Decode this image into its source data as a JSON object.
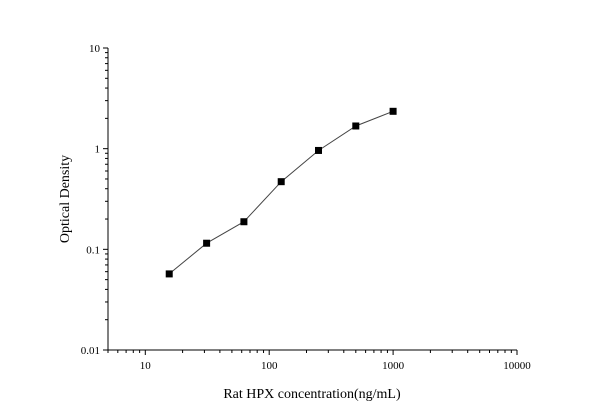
{
  "chart_data": {
    "type": "scatter",
    "xlabel": "Rat HPX concentration(ng/mL)",
    "ylabel": "Optical Density",
    "x_scale": "log",
    "y_scale": "log",
    "xlim": [
      5,
      10000
    ],
    "ylim": [
      0.01,
      10
    ],
    "x_ticks": [
      {
        "value": 10,
        "label": "10"
      },
      {
        "value": 100,
        "label": "100"
      },
      {
        "value": 1000,
        "label": "1000"
      },
      {
        "value": 10000,
        "label": "10000"
      }
    ],
    "y_ticks": [
      {
        "value": 0.01,
        "label": "0.01"
      },
      {
        "value": 0.1,
        "label": "0.1"
      },
      {
        "value": 1,
        "label": "1"
      },
      {
        "value": 10,
        "label": "10"
      }
    ],
    "grid": false,
    "legend": "none",
    "marker_color": "#000000",
    "line_color": "#444444",
    "series": [
      {
        "x": [
          15.6,
          31.25,
          62.5,
          125,
          250,
          500,
          1000
        ],
        "y": [
          0.057,
          0.115,
          0.188,
          0.47,
          0.96,
          1.68,
          2.35
        ]
      }
    ]
  }
}
